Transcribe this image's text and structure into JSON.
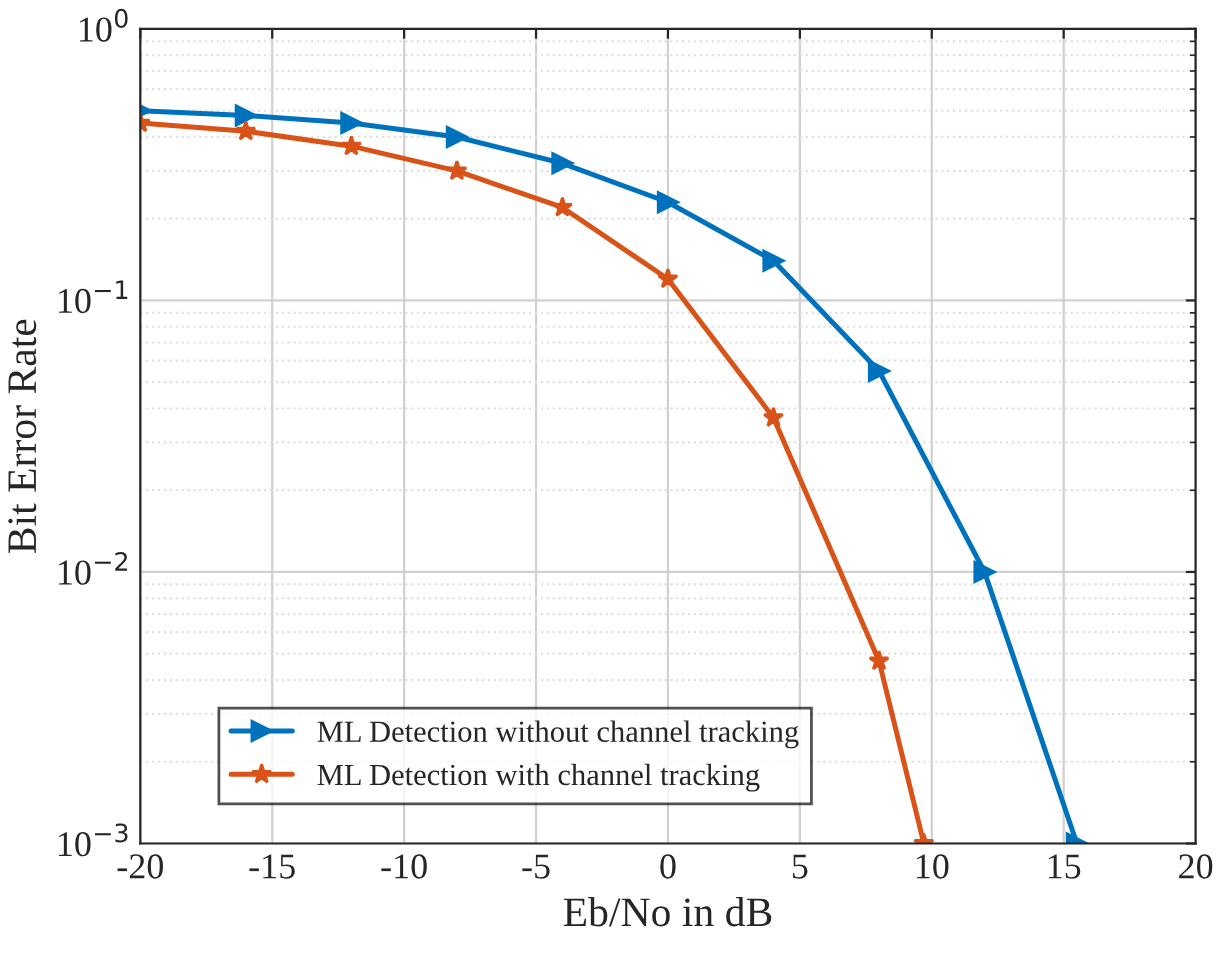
{
  "chart_data": {
    "type": "line",
    "xlabel": "Eb/No in dB",
    "ylabel": "Bit Error Rate",
    "log": "y",
    "xlim": [
      -20,
      20
    ],
    "xticks": [
      -20,
      -15,
      -10,
      -5,
      0,
      5,
      10,
      15,
      20
    ],
    "ylim": [
      0.001,
      1
    ],
    "yticks": [
      {
        "value": 0.001,
        "label": "10$^{−3}$"
      },
      {
        "value": 0.01,
        "label": "10$^{−2}$"
      },
      {
        "value": 0.1,
        "label": "10$^{−1}$"
      },
      {
        "value": 1,
        "label": "10$^{0}$"
      }
    ],
    "grid": true,
    "legend": "bottom left",
    "line_style": "solid",
    "series": [
      {
        "name": "ML Detection without channel tracking",
        "color": "#0072bd",
        "marker": "triangle",
        "x": [
          -20,
          -16,
          -12,
          -8,
          -4,
          0,
          4,
          8,
          12,
          15.5
        ],
        "values": [
          0.5,
          0.48,
          0.45,
          0.4,
          0.32,
          0.23,
          0.14,
          0.055,
          0.01,
          0.001
        ]
      },
      {
        "name": "ML Detection with channel tracking",
        "color": "#d95319",
        "marker": "star",
        "x": [
          -20,
          -16,
          -12,
          -8,
          -4,
          0,
          4,
          8,
          9.7
        ],
        "values": [
          0.45,
          0.42,
          0.37,
          0.3,
          0.22,
          0.12,
          0.037,
          0.0047,
          0.001
        ]
      }
    ]
  }
}
